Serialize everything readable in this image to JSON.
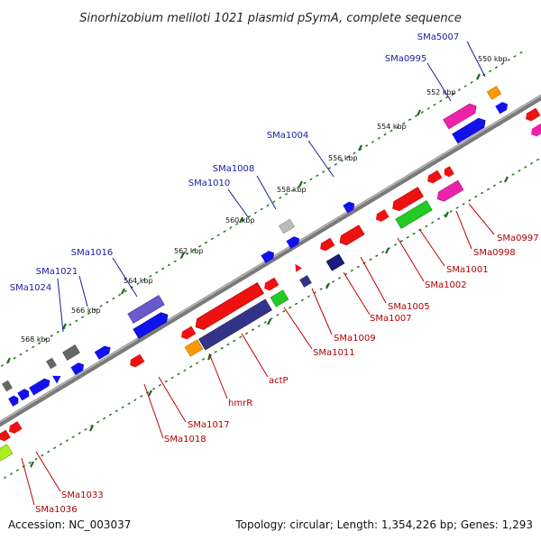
{
  "title": "Sinorhizobium meliloti 1021 plasmid pSymA, complete sequence",
  "footer": {
    "accession": "Accession: NC_003037",
    "summary": "Topology: circular; Length: 1,354,226 bp; Genes: 1,293"
  },
  "colors": {
    "backbone": "#808080",
    "tick": "#2a7a2a",
    "top_label": "#1a1aa0",
    "bottom_label": "#b00000",
    "red": "#ee1111",
    "blue": "#1111ee",
    "navy": "#333388",
    "violet": "#6a5acd",
    "grey": "#666666",
    "lightgrey": "#bbbbbb",
    "green": "#22cc22",
    "orange": "#ff9900",
    "magenta": "#ee22aa",
    "lime": "#aaee22"
  },
  "scale_labels": [
    "550 kbp",
    "552 kbp",
    "554 kbp",
    "556 kbp",
    "558 kbp",
    "560 kbp",
    "562 kbp",
    "564 kbp",
    "566 kbp",
    "568 kbp"
  ],
  "top_genes": [
    "SMa5007",
    "SMa0995",
    "SMa1004",
    "SMa1008",
    "SMa1010",
    "SMa1016",
    "SMa1021",
    "SMa1024"
  ],
  "bottom_genes": [
    "SMa0997",
    "SMa0998",
    "SMa1001",
    "SMa1002",
    "SMa1005",
    "SMa1007",
    "SMa1009",
    "SMa1011",
    "actP",
    "hmrR",
    "SMa1017",
    "SMa1018",
    "SMa1033",
    "SMa1036"
  ]
}
